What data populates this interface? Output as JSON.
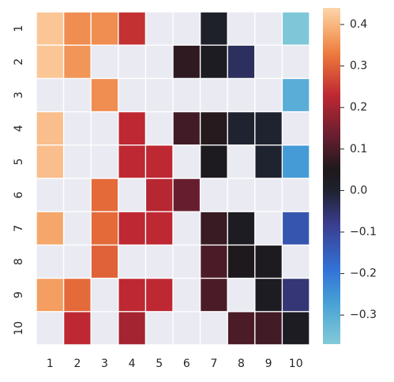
{
  "chart_data": {
    "type": "heatmap",
    "title": "",
    "xlabel": "",
    "ylabel": "",
    "x_categories": [
      "1",
      "2",
      "3",
      "4",
      "5",
      "6",
      "7",
      "8",
      "9",
      "10"
    ],
    "y_categories": [
      "1",
      "2",
      "3",
      "4",
      "5",
      "6",
      "7",
      "8",
      "9",
      "10"
    ],
    "values": [
      [
        0.42,
        0.35,
        0.35,
        0.24,
        null,
        null,
        0.01,
        null,
        null,
        -0.36
      ],
      [
        0.42,
        0.36,
        null,
        null,
        null,
        0.07,
        0.03,
        -0.04,
        null,
        null
      ],
      [
        null,
        null,
        0.35,
        null,
        null,
        null,
        null,
        null,
        null,
        -0.3
      ],
      [
        0.41,
        null,
        null,
        0.23,
        null,
        0.09,
        0.06,
        0.0,
        0.0,
        null
      ],
      [
        0.41,
        null,
        null,
        0.23,
        0.23,
        null,
        0.04,
        null,
        0.0,
        -0.26
      ],
      [
        null,
        null,
        0.31,
        null,
        0.22,
        0.13,
        null,
        null,
        null,
        null
      ],
      [
        0.38,
        null,
        0.31,
        0.23,
        0.23,
        null,
        0.08,
        0.03,
        null,
        -0.13
      ],
      [
        null,
        null,
        0.3,
        null,
        null,
        null,
        0.1,
        0.05,
        0.04,
        null
      ],
      [
        0.37,
        0.31,
        null,
        0.23,
        0.23,
        null,
        0.1,
        null,
        0.03,
        -0.06
      ],
      [
        null,
        0.23,
        null,
        0.2,
        null,
        null,
        null,
        0.1,
        0.09,
        0.03
      ]
    ],
    "vmin": -0.37,
    "vmax": 0.44,
    "missing_color": "#eaeaf2",
    "colormap": "icefire",
    "grid": true,
    "colorbar": {
      "placement": "right",
      "ticks": [
        {
          "value": 0.4,
          "label": "0.4"
        },
        {
          "value": 0.3,
          "label": "0.3"
        },
        {
          "value": 0.2,
          "label": "0.2"
        },
        {
          "value": 0.1,
          "label": "0.1"
        },
        {
          "value": 0.0,
          "label": "0.0"
        },
        {
          "value": -0.1,
          "label": "−0.1"
        },
        {
          "value": -0.2,
          "label": "−0.2"
        },
        {
          "value": -0.3,
          "label": "−0.3"
        }
      ]
    }
  }
}
